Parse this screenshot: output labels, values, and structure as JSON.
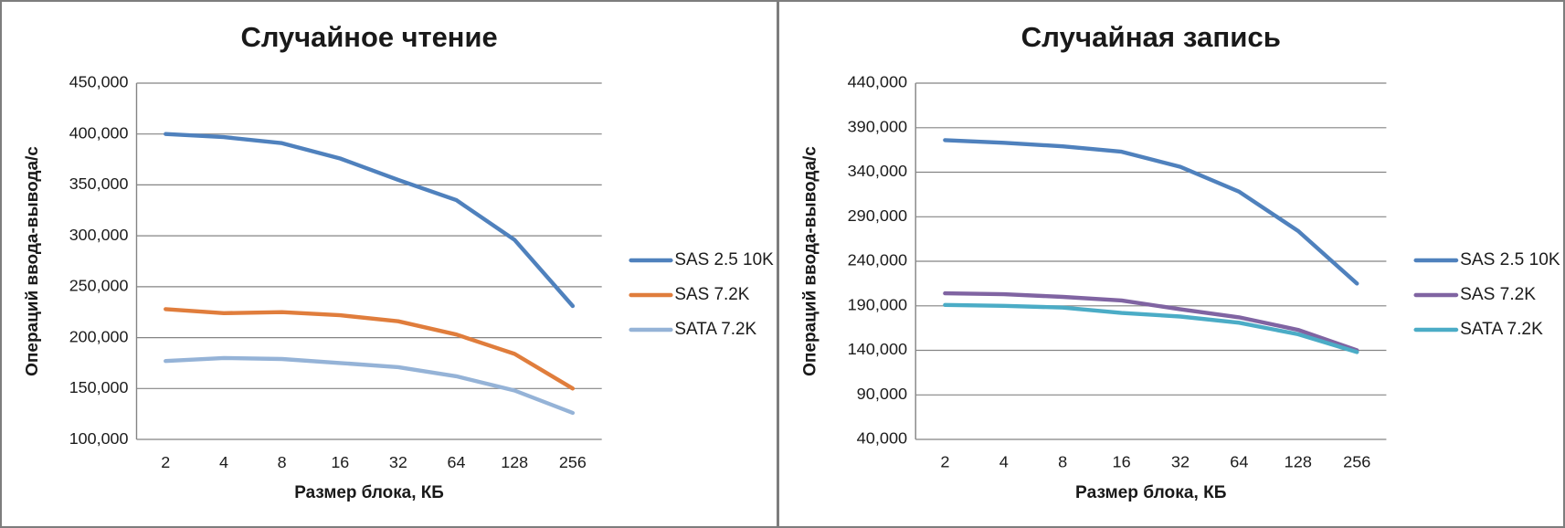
{
  "colors": {
    "background": "#ffffff",
    "frame_border": "#7d7d7d",
    "gridline": "#848484",
    "axis_line": "#848484",
    "text": "#1c1c1c",
    "series_blue": "#4F81BD",
    "series_orange": "#E07D3C",
    "series_light_blue": "#95B3D7",
    "series_purple": "#8064A2",
    "series_teal": "#4BACC6"
  },
  "chart_data": [
    {
      "type": "line",
      "title": "Случайное чтение",
      "xlabel": "Размер блока, КБ",
      "ylabel": "Операций ввода-вывода/с",
      "categories": [
        "2",
        "4",
        "8",
        "16",
        "32",
        "64",
        "128",
        "256"
      ],
      "ylim": [
        100000,
        450000
      ],
      "ytick_step": 50000,
      "grid": true,
      "legend_position": "right",
      "series": [
        {
          "name": "SAS 2.5 10K",
          "color": "#4F81BD",
          "values": [
            400000,
            397000,
            391000,
            376000,
            355000,
            335000,
            296000,
            231000
          ]
        },
        {
          "name": "SAS 7.2K",
          "color": "#E07D3C",
          "values": [
            228000,
            224000,
            225000,
            222000,
            216000,
            203000,
            184000,
            150000
          ]
        },
        {
          "name": "SATA 7.2K",
          "color": "#95B3D7",
          "values": [
            177000,
            180000,
            179000,
            175000,
            171000,
            162000,
            148000,
            126000
          ]
        }
      ]
    },
    {
      "type": "line",
      "title": "Случайная запись",
      "xlabel": "Размер блока, КБ",
      "ylabel": "Операций ввода-вывода/с",
      "categories": [
        "2",
        "4",
        "8",
        "16",
        "32",
        "64",
        "128",
        "256"
      ],
      "ylim": [
        40000,
        440000
      ],
      "ytick_step": 50000,
      "grid": true,
      "legend_position": "right",
      "series": [
        {
          "name": "SAS 2.5 10K",
          "color": "#4F81BD",
          "values": [
            376000,
            373000,
            369000,
            363000,
            346000,
            318000,
            274000,
            215000
          ]
        },
        {
          "name": "SAS 7.2K",
          "color": "#8064A2",
          "values": [
            204000,
            203000,
            200000,
            196000,
            186000,
            177000,
            163000,
            140000
          ]
        },
        {
          "name": "SATA 7.2K",
          "color": "#4BACC6",
          "values": [
            191000,
            190000,
            188000,
            182000,
            178000,
            171000,
            158000,
            138000
          ]
        }
      ]
    }
  ]
}
